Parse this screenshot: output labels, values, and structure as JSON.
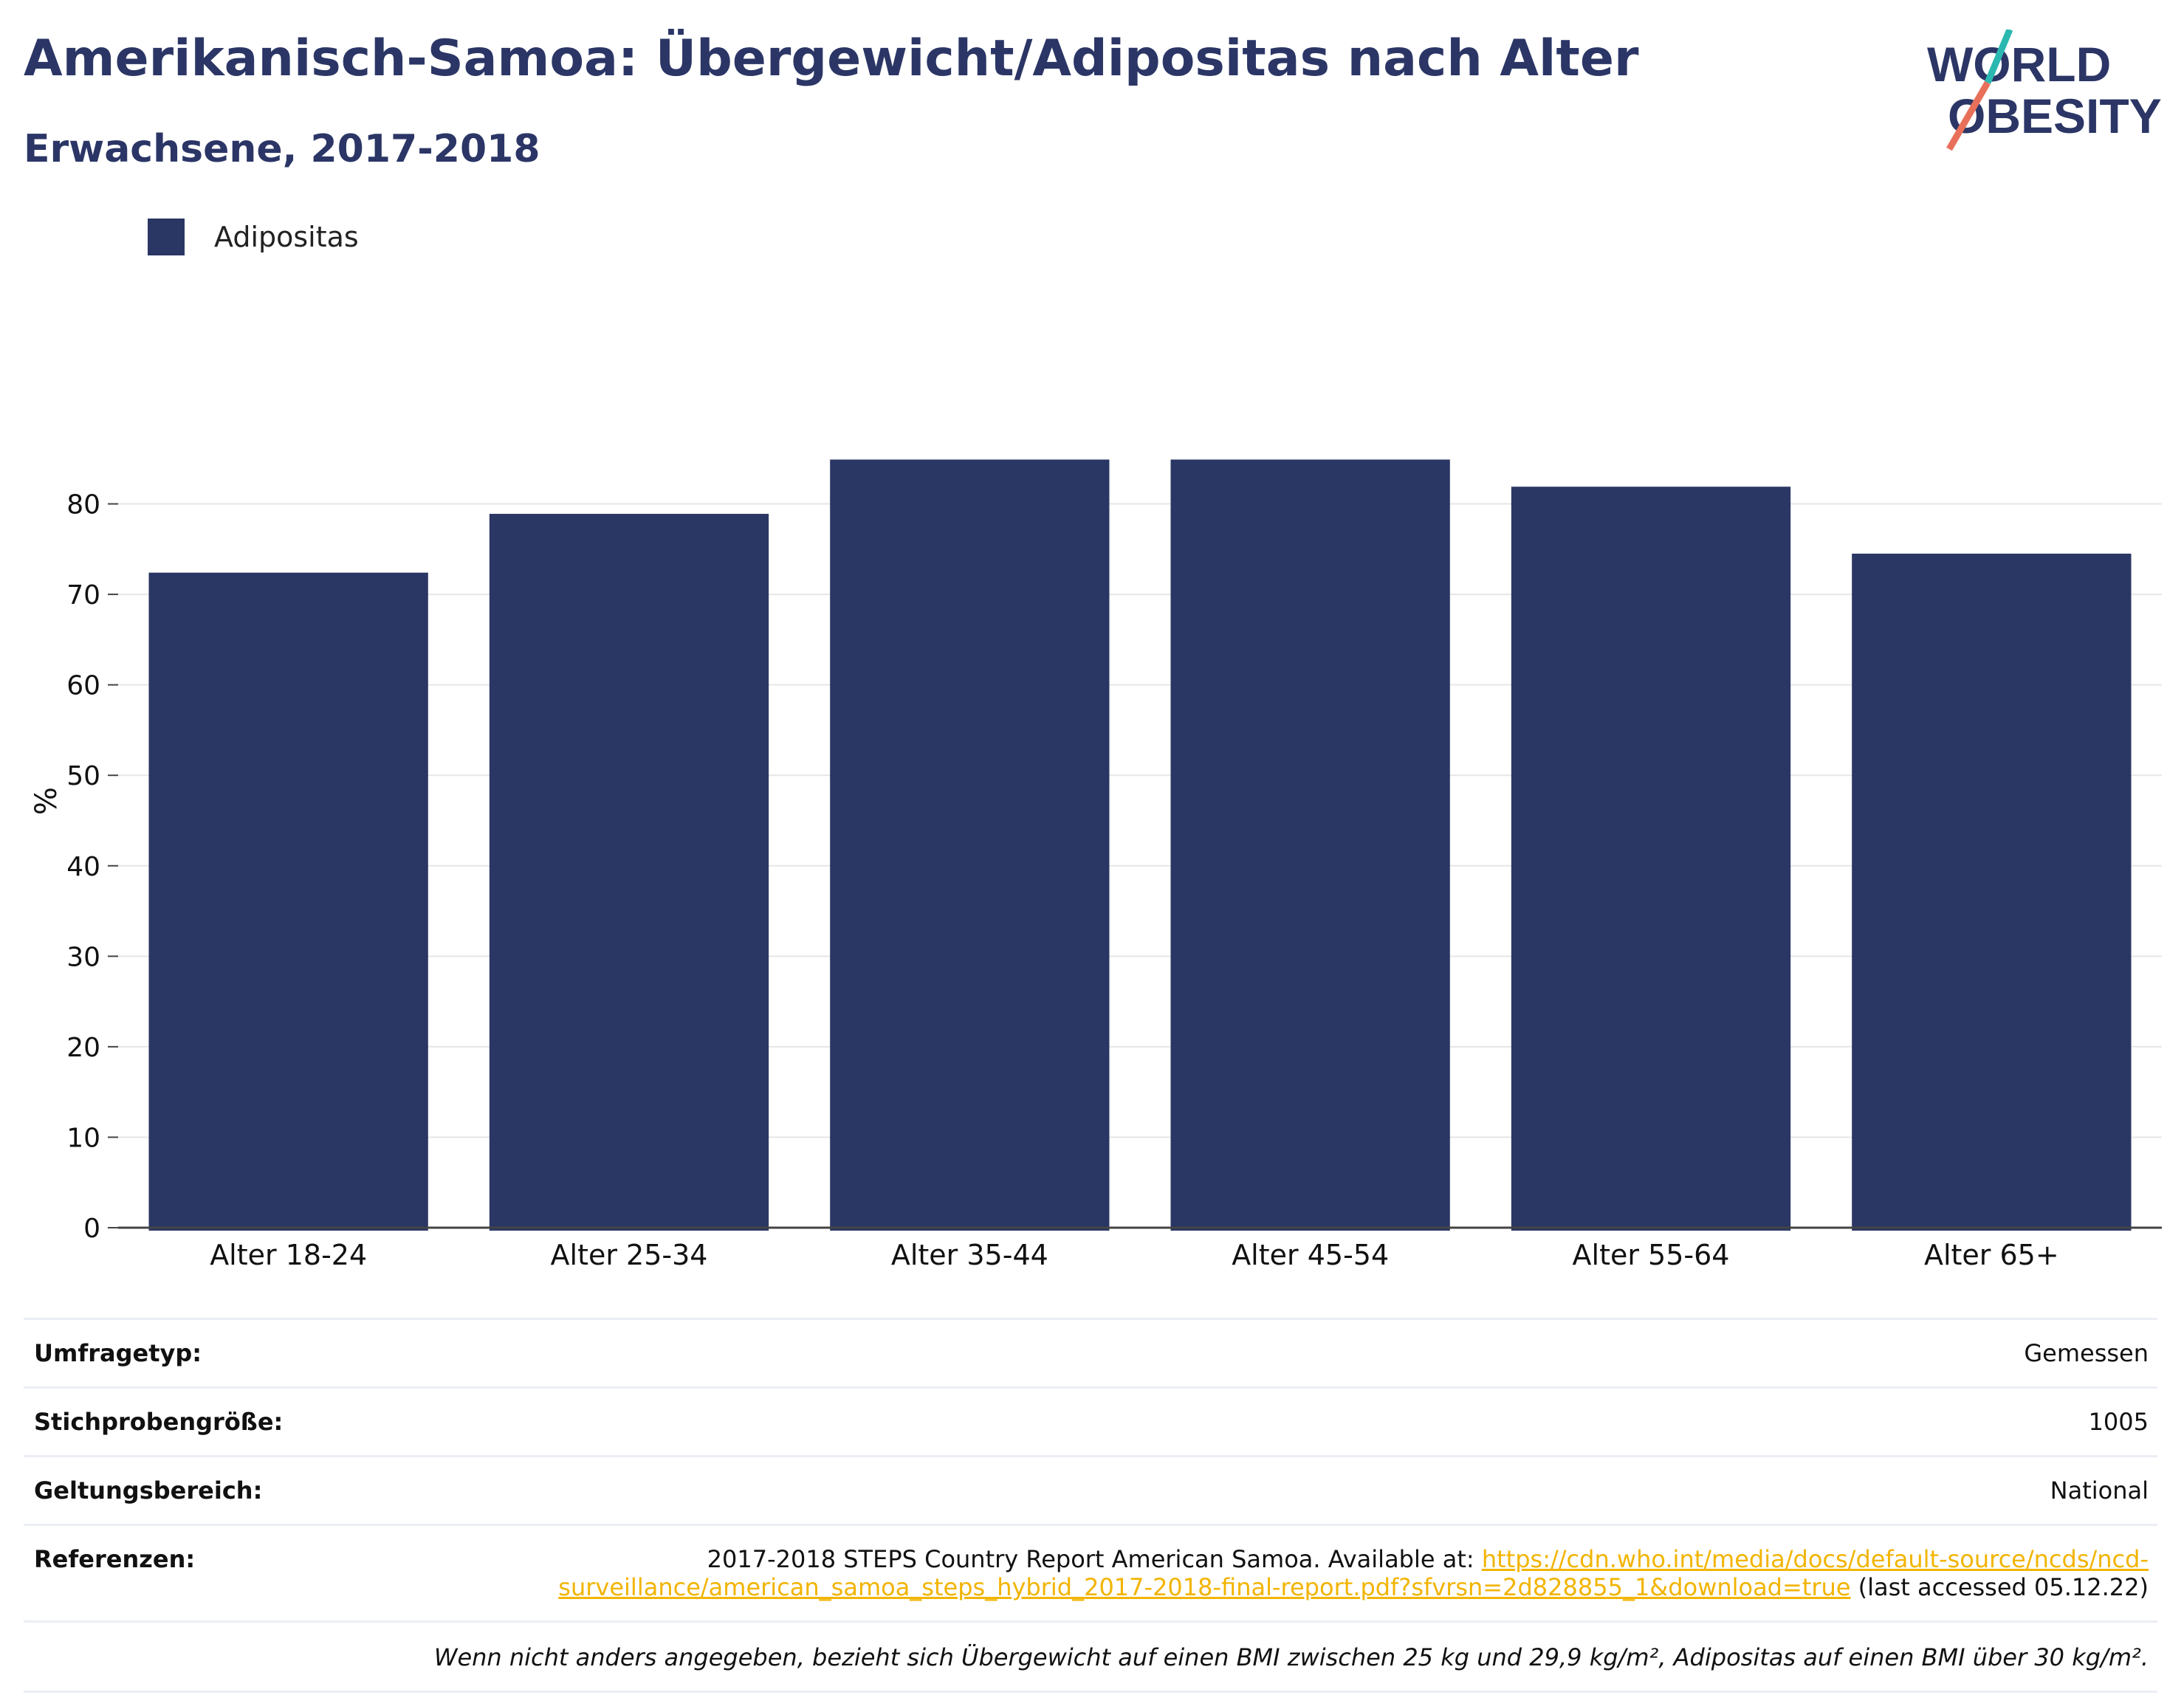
{
  "header": {
    "title": "Amerikanisch-Samoa: Übergewicht/Adipositas nach Alter",
    "subtitle": "Erwachsene, 2017-2018"
  },
  "logo": {
    "line1": "WORLD",
    "line2": "OBESITY",
    "colors": {
      "text": "#2b3666",
      "slash_top": "#2bb8b0",
      "slash_bottom": "#e8705a"
    }
  },
  "legend": {
    "label": "Adipositas",
    "color": "#2a3664"
  },
  "chart_data": {
    "type": "bar",
    "categories": [
      "Alter 18-24",
      "Alter 25-34",
      "Alter 35-44",
      "Alter 45-54",
      "Alter 55-64",
      "Alter 65+"
    ],
    "series": [
      {
        "name": "Adipositas",
        "values": [
          72.4,
          78.9,
          84.9,
          84.9,
          81.9,
          74.5
        ],
        "color": "#2a3664"
      }
    ],
    "ylabel": "%",
    "ylim": [
      0,
      90
    ],
    "yticks": [
      0,
      10,
      20,
      30,
      40,
      50,
      60,
      70,
      80
    ],
    "grid": true,
    "legend_position": "top-left"
  },
  "info": {
    "survey_type": {
      "label": "Umfragetyp:",
      "value": "Gemessen"
    },
    "sample_size": {
      "label": "Stichprobengröße:",
      "value": "1005"
    },
    "scope": {
      "label": "Geltungsbereich:",
      "value": "National"
    },
    "references": {
      "label": "Referenzen:",
      "text_before": "2017-2018 STEPS Country Report American Samoa. Available at: ",
      "link_line1": "https://cdn.who.int/media/docs/default-source/ncds/ncd-",
      "link_line2": "surveillance/american_samoa_steps_hybrid_2017-2018-final-report.pdf?sfvrsn=2d828855_1&download=true",
      "text_after": " (last accessed 05.12.22)",
      "link_color": "#f2b400"
    },
    "note": "Wenn nicht anders angegeben, bezieht sich Übergewicht auf einen BMI zwischen 25 kg und 29,9 kg/m², Adipositas auf einen BMI über 30 kg/m²."
  }
}
